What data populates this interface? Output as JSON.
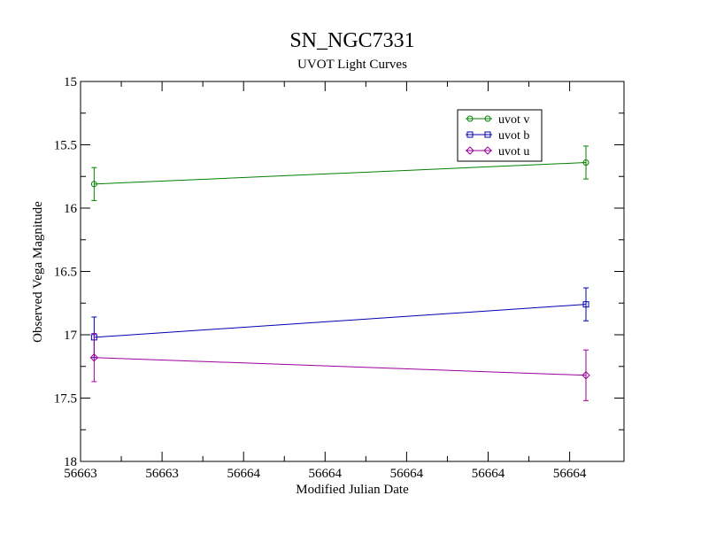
{
  "chart_data": {
    "type": "line",
    "title": "SN_NGC7331",
    "subtitle": "UVOT Light Curves",
    "xlabel": "Modified Julian Date",
    "ylabel": "Observed Vega Magnitude",
    "xlim": [
      56662.9,
      56664.9
    ],
    "ylim": [
      15,
      18
    ],
    "y_inverted": true,
    "x_tick_values": [
      56662.9,
      56663.2,
      56663.5,
      56663.8,
      56664.1,
      56664.4,
      56664.7
    ],
    "x_tick_labels": [
      "56663",
      "56663",
      "56664",
      "56664",
      "56664",
      "56664",
      "56664"
    ],
    "y_tick_values": [
      15,
      15.5,
      16,
      16.5,
      17,
      17.5,
      18
    ],
    "y_tick_labels": [
      "15",
      "15.5",
      "16",
      "16.5",
      "17",
      "17.5",
      "18"
    ],
    "grid": false,
    "legend_position": "top-right",
    "series": [
      {
        "name": "uvot v",
        "color": "#008000",
        "marker": "circle",
        "x": [
          56662.95,
          56664.76
        ],
        "y": [
          15.81,
          15.64
        ],
        "yerr": [
          0.13,
          0.13
        ]
      },
      {
        "name": "uvot b",
        "color": "#0000b0",
        "marker": "square",
        "x": [
          56662.95,
          56664.76
        ],
        "y": [
          17.02,
          16.76
        ],
        "yerr": [
          0.16,
          0.13
        ]
      },
      {
        "name": "uvot u",
        "color": "#9a009a",
        "marker": "diamond",
        "x": [
          56662.95,
          56664.76
        ],
        "y": [
          17.18,
          17.32
        ],
        "yerr": [
          0.19,
          0.2
        ]
      }
    ]
  }
}
